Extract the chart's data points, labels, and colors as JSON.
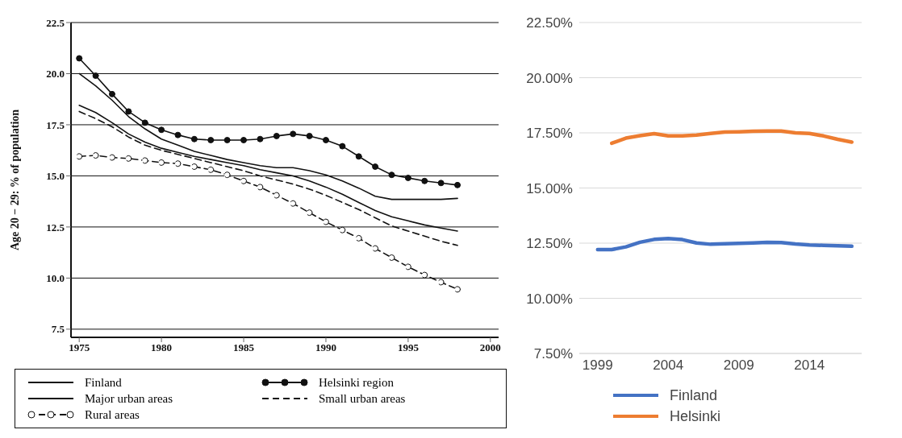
{
  "chart_data": [
    {
      "type": "line",
      "ylabel": "Age 20 − 29: % of population",
      "x": [
        1975,
        1976,
        1977,
        1978,
        1979,
        1980,
        1981,
        1982,
        1983,
        1984,
        1985,
        1986,
        1987,
        1988,
        1989,
        1990,
        1991,
        1992,
        1993,
        1994,
        1995,
        1996,
        1997,
        1998
      ],
      "xlim": [
        1974.5,
        2000.5
      ],
      "xticks": [
        1975,
        1980,
        1985,
        1990,
        1995,
        2000
      ],
      "ylim": [
        7.1,
        22.5
      ],
      "yticks": [
        {
          "value": 7.5,
          "label": "7.5"
        },
        {
          "value": 10,
          "label": "10.0"
        },
        {
          "value": 12.5,
          "label": "12.5"
        },
        {
          "value": 15,
          "label": "15.0"
        },
        {
          "value": 17.5,
          "label": "17.5"
        },
        {
          "value": 20,
          "label": "20.0"
        },
        {
          "value": 22.5,
          "label": "22.5"
        }
      ],
      "grid": "y",
      "legend": "bottom",
      "series": [
        {
          "name": "Finland",
          "color": "#111111",
          "marker": "none",
          "line_style": "solid",
          "values": [
            18.45,
            18.1,
            17.6,
            17.05,
            16.65,
            16.35,
            16.15,
            15.95,
            15.8,
            15.65,
            15.5,
            15.3,
            15.15,
            15.0,
            14.75,
            14.45,
            14.1,
            13.7,
            13.3,
            13.0,
            12.8,
            12.6,
            12.45,
            12.3
          ]
        },
        {
          "name": "Major urban areas",
          "color": "#111111",
          "marker": "none",
          "line_style": "solid",
          "values": [
            20.0,
            19.4,
            18.7,
            17.9,
            17.3,
            16.8,
            16.5,
            16.2,
            16.0,
            15.8,
            15.65,
            15.5,
            15.4,
            15.4,
            15.25,
            15.05,
            14.75,
            14.4,
            14.0,
            13.85,
            13.85,
            13.85,
            13.85,
            13.9
          ]
        },
        {
          "name": "Rural areas",
          "color": "#111111",
          "marker": "circle",
          "line_style": "dashed",
          "values": [
            15.95,
            16.0,
            15.9,
            15.85,
            15.75,
            15.65,
            15.6,
            15.45,
            15.3,
            15.05,
            14.75,
            14.45,
            14.05,
            13.65,
            13.2,
            12.75,
            12.35,
            11.95,
            11.45,
            11.0,
            10.55,
            10.15,
            9.8,
            9.45
          ]
        },
        {
          "name": "Helsinki region",
          "color": "#111111",
          "marker": "circle",
          "line_style": "solid",
          "values": [
            20.75,
            19.9,
            19.0,
            18.15,
            17.6,
            17.25,
            17.0,
            16.8,
            16.75,
            16.75,
            16.75,
            16.8,
            16.95,
            17.05,
            16.95,
            16.75,
            16.45,
            15.95,
            15.45,
            15.05,
            14.9,
            14.75,
            14.65,
            14.55
          ]
        },
        {
          "name": "Small urban areas",
          "color": "#111111",
          "marker": "none",
          "line_style": "dashed",
          "values": [
            18.15,
            17.8,
            17.4,
            16.9,
            16.5,
            16.25,
            16.05,
            15.85,
            15.65,
            15.45,
            15.25,
            15.0,
            14.8,
            14.6,
            14.35,
            14.05,
            13.7,
            13.35,
            12.95,
            12.55,
            12.3,
            12.05,
            11.8,
            11.6
          ]
        }
      ]
    },
    {
      "type": "line",
      "x": [
        1999,
        2000,
        2001,
        2002,
        2003,
        2004,
        2005,
        2006,
        2007,
        2008,
        2009,
        2010,
        2011,
        2012,
        2013,
        2014,
        2015,
        2016,
        2017
      ],
      "xlim": [
        1997.7,
        2017.7
      ],
      "xticks": [
        1999,
        2004,
        2009,
        2014
      ],
      "ylim": [
        7.5,
        22.5
      ],
      "yticks": [
        {
          "value": 7.5,
          "label": "7.50%"
        },
        {
          "value": 10,
          "label": "10.00%"
        },
        {
          "value": 12.5,
          "label": "12.50%"
        },
        {
          "value": 15,
          "label": "15.00%"
        },
        {
          "value": 17.5,
          "label": "17.50%"
        },
        {
          "value": 20,
          "label": "20.00%"
        },
        {
          "value": 22.5,
          "label": "22.50%"
        }
      ],
      "grid": "y",
      "legend": "bottom",
      "series": [
        {
          "name": "Finland",
          "color": "#4472c4",
          "marker": "none",
          "line_style": "solid",
          "values": [
            12.21,
            12.21,
            12.33,
            12.54,
            12.67,
            12.71,
            12.66,
            12.51,
            12.45,
            12.47,
            12.49,
            12.51,
            12.54,
            12.53,
            12.46,
            12.42,
            12.4,
            12.38,
            12.36
          ]
        },
        {
          "name": "Helsinki",
          "color": "#ed7d31",
          "marker": "none",
          "line_style": "solid",
          "values": [
            null,
            17.03,
            17.26,
            17.37,
            17.46,
            17.36,
            17.36,
            17.4,
            17.47,
            17.54,
            17.55,
            17.57,
            17.58,
            17.58,
            17.5,
            17.47,
            17.36,
            17.21,
            17.08
          ]
        }
      ]
    }
  ]
}
